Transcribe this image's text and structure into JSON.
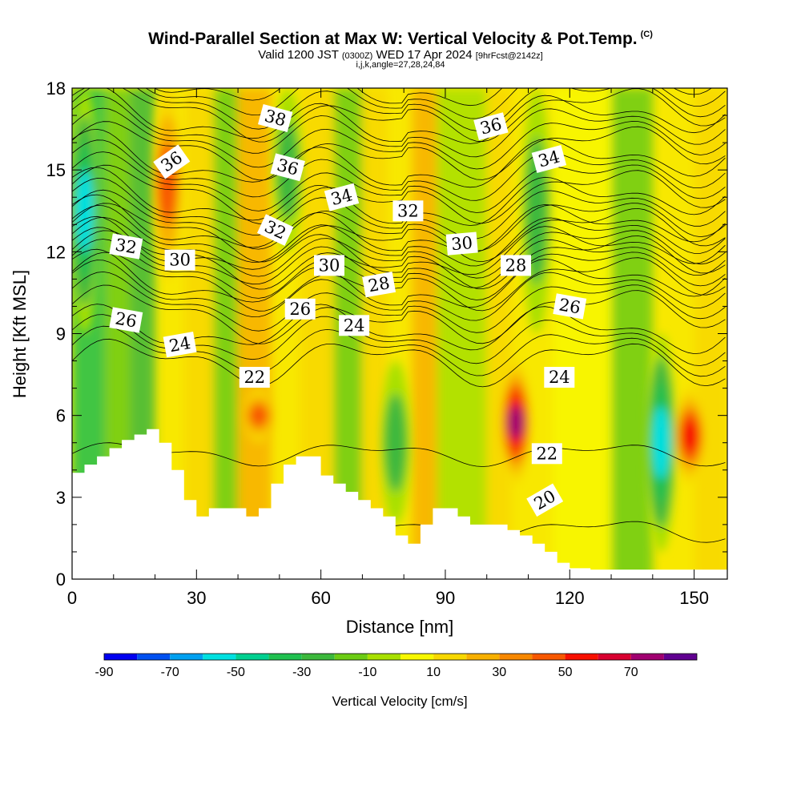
{
  "header": {
    "title": "Wind-Parallel Section at Max W: Vertical Velocity & Pot.Temp.",
    "copyright": "(C)",
    "valid_prefix": "Valid 1200 JST",
    "valid_z": "(0300Z)",
    "valid_date": "WED 17 Apr 2024",
    "forecast": "[9hrFcst@2142z]",
    "params": "i,j,k,angle=27,28,24,84"
  },
  "chart_data": {
    "type": "heatmap",
    "title": "Wind-Parallel Section at Max W: Vertical Velocity & Pot.Temp.",
    "xlabel": "Distance [nm]",
    "ylabel": "Height [Kft MSL]",
    "xlim": [
      0,
      158
    ],
    "ylim": [
      0,
      18
    ],
    "x_ticks": [
      "0",
      "30",
      "60",
      "90",
      "120",
      "150"
    ],
    "y_ticks": [
      "0",
      "3",
      "6",
      "9",
      "12",
      "15",
      "18"
    ],
    "colorbar": {
      "label": "Vertical Velocity [cm/s]",
      "tick_labels": [
        "-90",
        "-70",
        "-50",
        "-30",
        "-10",
        "10",
        "30",
        "50",
        "70"
      ],
      "levels": [
        -90,
        -80,
        -70,
        -60,
        -50,
        -40,
        -30,
        -20,
        -10,
        0,
        10,
        20,
        30,
        40,
        50,
        60,
        70,
        80
      ],
      "colors": [
        "#0000f0",
        "#0050f0",
        "#00a0f0",
        "#00e0e0",
        "#00d090",
        "#20c050",
        "#3cb83c",
        "#6ccc14",
        "#a8e000",
        "#f8f800",
        "#f8d800",
        "#f8b000",
        "#f88800",
        "#f85800",
        "#f81000",
        "#d80030",
        "#a00070",
        "#600090"
      ]
    },
    "vertical_velocity_features": [
      {
        "x": 3,
        "z_range": [
          9,
          18
        ],
        "value": -60
      },
      {
        "x": 23,
        "z_range": [
          11,
          18
        ],
        "value": 50
      },
      {
        "x": 45,
        "z_range": [
          5,
          7
        ],
        "value": 40
      },
      {
        "x": 52,
        "z_range": [
          12,
          18
        ],
        "value": -30
      },
      {
        "x": 78,
        "z_range": [
          2,
          8
        ],
        "value": -30
      },
      {
        "x": 107,
        "z_range": [
          3.5,
          8
        ],
        "value": 70
      },
      {
        "x": 112,
        "z_range": [
          9,
          18
        ],
        "value": -30
      },
      {
        "x": 142,
        "z_range": [
          1,
          9
        ],
        "value": -60
      },
      {
        "x": 149,
        "z_range": [
          3.5,
          7
        ],
        "value": 60
      }
    ],
    "terrain": {
      "x": [
        0,
        3,
        6,
        9,
        12,
        15,
        18,
        21,
        24,
        27,
        30,
        33,
        36,
        39,
        42,
        45,
        48,
        51,
        54,
        57,
        60,
        63,
        66,
        69,
        72,
        75,
        78,
        81,
        84,
        87,
        90,
        93,
        96,
        99,
        102,
        105,
        108,
        111,
        114,
        117,
        120,
        125,
        130,
        135,
        140,
        145,
        150,
        155,
        158
      ],
      "height": [
        3.9,
        4.2,
        4.5,
        4.8,
        5.1,
        5.3,
        5.5,
        5.0,
        4.0,
        2.9,
        2.3,
        2.6,
        2.6,
        2.6,
        2.3,
        2.6,
        3.5,
        4.2,
        4.5,
        4.5,
        3.8,
        3.5,
        3.2,
        2.9,
        2.6,
        2.3,
        1.6,
        1.3,
        2.0,
        2.6,
        2.6,
        2.3,
        2.0,
        2.0,
        2.0,
        1.8,
        1.6,
        1.3,
        1.0,
        0.6,
        0.4,
        0.35,
        0.35,
        0.35,
        0.35,
        0.35,
        0.35,
        0.35,
        0.35
      ]
    },
    "theta_contours": [
      {
        "value": 20,
        "label": "20"
      },
      {
        "value": 22,
        "label": "22"
      },
      {
        "value": 24,
        "label": "24"
      },
      {
        "value": 26,
        "label": "26"
      },
      {
        "value": 28,
        "label": "28"
      },
      {
        "value": 30,
        "label": "30"
      },
      {
        "value": 32,
        "label": "32"
      },
      {
        "value": 34,
        "label": "34"
      },
      {
        "value": 36,
        "label": "36"
      },
      {
        "value": 38,
        "label": "38"
      }
    ],
    "contour_labels": [
      {
        "x": 44,
        "z": 7.4,
        "text": "22",
        "angle": 0
      },
      {
        "x": 117.5,
        "z": 7.4,
        "text": "24",
        "angle": 0
      },
      {
        "x": 114.5,
        "z": 4.6,
        "text": "22",
        "angle": 0
      },
      {
        "x": 114,
        "z": 2.9,
        "text": "20",
        "angle": -30
      },
      {
        "x": 26,
        "z": 8.6,
        "text": "24",
        "angle": -10
      },
      {
        "x": 68,
        "z": 9.3,
        "text": "24",
        "angle": 0
      },
      {
        "x": 13,
        "z": 9.5,
        "text": "26",
        "angle": 10
      },
      {
        "x": 55,
        "z": 9.9,
        "text": "26",
        "angle": 0
      },
      {
        "x": 120,
        "z": 10.0,
        "text": "26",
        "angle": 10
      },
      {
        "x": 74,
        "z": 10.8,
        "text": "28",
        "angle": -10
      },
      {
        "x": 107,
        "z": 11.5,
        "text": "28",
        "angle": 0
      },
      {
        "x": 26,
        "z": 11.7,
        "text": "30",
        "angle": 0
      },
      {
        "x": 62,
        "z": 11.5,
        "text": "30",
        "angle": 0
      },
      {
        "x": 94,
        "z": 12.3,
        "text": "30",
        "angle": -5
      },
      {
        "x": 13,
        "z": 12.2,
        "text": "32",
        "angle": 10
      },
      {
        "x": 49,
        "z": 12.8,
        "text": "32",
        "angle": 25
      },
      {
        "x": 81,
        "z": 13.5,
        "text": "32",
        "angle": 0
      },
      {
        "x": 65,
        "z": 14.0,
        "text": "34",
        "angle": -15
      },
      {
        "x": 115,
        "z": 15.4,
        "text": "34",
        "angle": -15
      },
      {
        "x": 24,
        "z": 15.3,
        "text": "36",
        "angle": -35
      },
      {
        "x": 52,
        "z": 15.1,
        "text": "36",
        "angle": 15
      },
      {
        "x": 101,
        "z": 16.6,
        "text": "36",
        "angle": -15
      },
      {
        "x": 49,
        "z": 16.9,
        "text": "38",
        "angle": 15
      }
    ]
  }
}
